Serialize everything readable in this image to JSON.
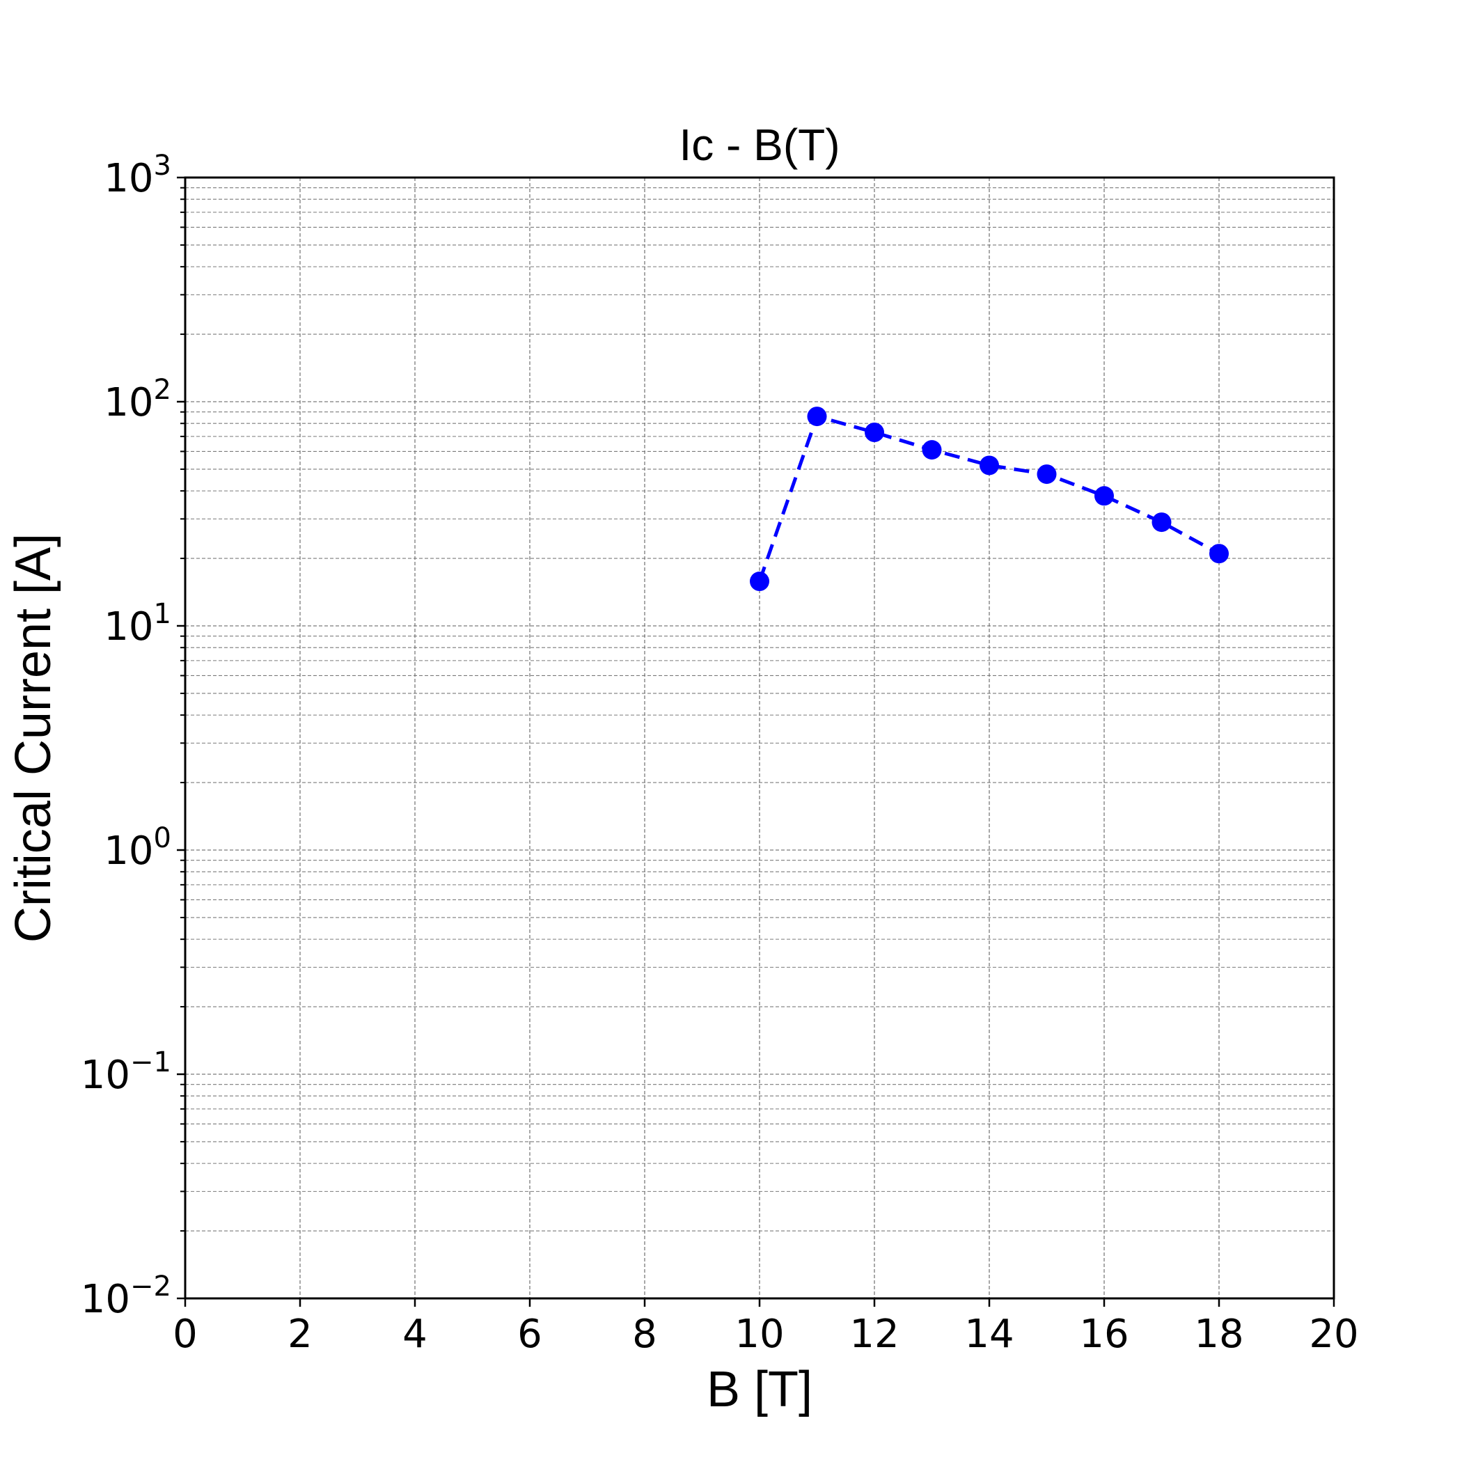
{
  "chart_data": {
    "type": "line",
    "title": "Ic - B(T)",
    "xlabel": "B [T]",
    "ylabel": "Critical Current [A]",
    "xlim": [
      0,
      20
    ],
    "ylim": [
      0.01,
      1000
    ],
    "xscale": "linear",
    "yscale": "log",
    "grid": true,
    "grid_style": "dashed",
    "legend": "none",
    "x_ticks": [
      "0",
      "2",
      "4",
      "6",
      "8",
      "10",
      "12",
      "14",
      "16",
      "18",
      "20"
    ],
    "y_ticks": [
      {
        "base": "10",
        "exp": "−2",
        "value": 0.01
      },
      {
        "base": "10",
        "exp": "−1",
        "value": 0.1
      },
      {
        "base": "10",
        "exp": "0",
        "value": 1
      },
      {
        "base": "10",
        "exp": "1",
        "value": 10
      },
      {
        "base": "10",
        "exp": "2",
        "value": 100
      },
      {
        "base": "10",
        "exp": "3",
        "value": 1000
      }
    ],
    "series": [
      {
        "color": "#0000ff",
        "line_style": "dashed",
        "marker": "circle",
        "x": [
          10,
          11,
          12,
          13,
          14,
          15,
          16,
          17,
          18
        ],
        "y": [
          15.8,
          86,
          73,
          61,
          52,
          47.5,
          38,
          29,
          21
        ]
      }
    ]
  }
}
